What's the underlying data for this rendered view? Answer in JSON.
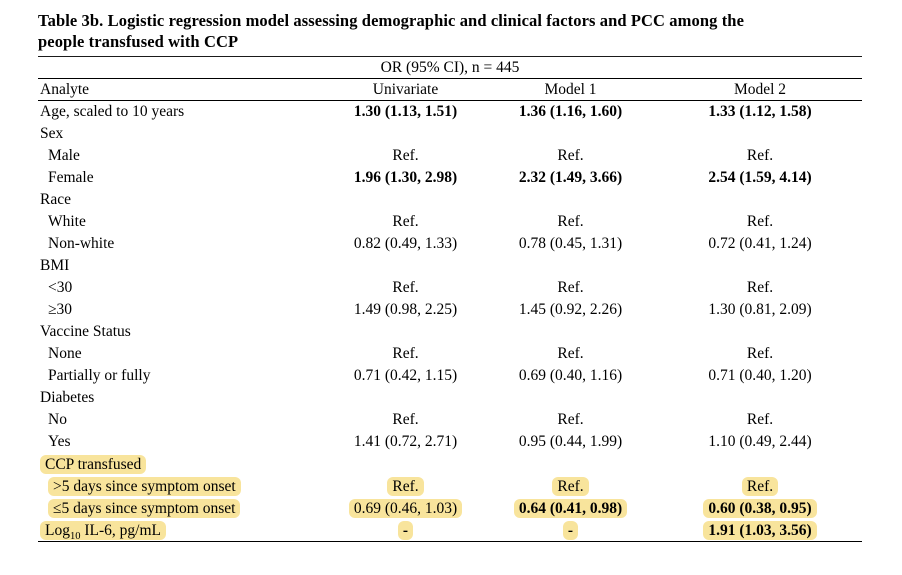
{
  "document": {
    "title_lines": [
      "Table 3b. Logistic regression model assessing demographic and clinical factors and PCC among the",
      "people transfused with CCP"
    ]
  },
  "table": {
    "span_header": "OR (95% CI), n = 445",
    "columns": [
      "Analyte",
      "Univariate",
      "Model 1",
      "Model 2"
    ],
    "highlight_color": "#F8E49C",
    "rows": [
      {
        "label": "Age, scaled to 10 years",
        "indent": false,
        "highlight": false,
        "cells": [
          "1.30 (1.13, 1.51)",
          "1.36 (1.16, 1.60)",
          "1.33 (1.12, 1.58)"
        ],
        "bold_cells": [
          true,
          true,
          true
        ]
      },
      {
        "label": "Sex",
        "indent": false,
        "highlight": false,
        "cells": [
          "",
          "",
          ""
        ],
        "bold_cells": [
          false,
          false,
          false
        ]
      },
      {
        "label": "Male",
        "indent": true,
        "highlight": false,
        "cells": [
          "Ref.",
          "Ref.",
          "Ref."
        ],
        "bold_cells": [
          false,
          false,
          false
        ]
      },
      {
        "label": "Female",
        "indent": true,
        "highlight": false,
        "cells": [
          "1.96 (1.30, 2.98)",
          "2.32 (1.49, 3.66)",
          "2.54 (1.59, 4.14)"
        ],
        "bold_cells": [
          true,
          true,
          true
        ]
      },
      {
        "label": "Race",
        "indent": false,
        "highlight": false,
        "cells": [
          "",
          "",
          ""
        ],
        "bold_cells": [
          false,
          false,
          false
        ]
      },
      {
        "label": "White",
        "indent": true,
        "highlight": false,
        "cells": [
          "Ref.",
          "Ref.",
          "Ref."
        ],
        "bold_cells": [
          false,
          false,
          false
        ]
      },
      {
        "label": "Non-white",
        "indent": true,
        "highlight": false,
        "cells": [
          "0.82 (0.49, 1.33)",
          "0.78 (0.45, 1.31)",
          "0.72 (0.41, 1.24)"
        ],
        "bold_cells": [
          false,
          false,
          false
        ]
      },
      {
        "label": "BMI",
        "indent": false,
        "highlight": false,
        "cells": [
          "",
          "",
          ""
        ],
        "bold_cells": [
          false,
          false,
          false
        ]
      },
      {
        "label": "<30",
        "indent": true,
        "highlight": false,
        "cells": [
          "Ref.",
          "Ref.",
          "Ref."
        ],
        "bold_cells": [
          false,
          false,
          false
        ]
      },
      {
        "label": "≥30",
        "indent": true,
        "highlight": false,
        "cells": [
          "1.49 (0.98, 2.25)",
          "1.45 (0.92, 2.26)",
          "1.30 (0.81, 2.09)"
        ],
        "bold_cells": [
          false,
          false,
          false
        ]
      },
      {
        "label": "Vaccine Status",
        "indent": false,
        "highlight": false,
        "cells": [
          "",
          "",
          ""
        ],
        "bold_cells": [
          false,
          false,
          false
        ]
      },
      {
        "label": "None",
        "indent": true,
        "highlight": false,
        "cells": [
          "Ref.",
          "Ref.",
          "Ref."
        ],
        "bold_cells": [
          false,
          false,
          false
        ]
      },
      {
        "label": "Partially or fully",
        "indent": true,
        "highlight": false,
        "cells": [
          "0.71 (0.42, 1.15)",
          "0.69 (0.40, 1.16)",
          "0.71 (0.40, 1.20)"
        ],
        "bold_cells": [
          false,
          false,
          false
        ]
      },
      {
        "label": "Diabetes",
        "indent": false,
        "highlight": false,
        "cells": [
          "",
          "",
          ""
        ],
        "bold_cells": [
          false,
          false,
          false
        ]
      },
      {
        "label": "No",
        "indent": true,
        "highlight": false,
        "cells": [
          "Ref.",
          "Ref.",
          "Ref."
        ],
        "bold_cells": [
          false,
          false,
          false
        ]
      },
      {
        "label": "Yes",
        "indent": true,
        "highlight": false,
        "cells": [
          "1.41 (0.72, 2.71)",
          "0.95 (0.44, 1.99)",
          "1.10 (0.49, 2.44)"
        ],
        "bold_cells": [
          false,
          false,
          false
        ]
      },
      {
        "label": "CCP transfused",
        "indent": false,
        "highlight": true,
        "cells": [
          "",
          "",
          ""
        ],
        "bold_cells": [
          false,
          false,
          false
        ]
      },
      {
        "label": ">5 days since symptom onset",
        "indent": true,
        "highlight": true,
        "cells": [
          "Ref.",
          "Ref.",
          "Ref."
        ],
        "bold_cells": [
          false,
          false,
          false
        ]
      },
      {
        "label": "≤5 days since symptom onset",
        "indent": true,
        "highlight": true,
        "cells": [
          "0.69 (0.46, 1.03)",
          "0.64 (0.41, 0.98)",
          "0.60 (0.38, 0.95)"
        ],
        "bold_cells": [
          false,
          true,
          true
        ]
      },
      {
        "label_parts": [
          {
            "text": "Log",
            "sub": false
          },
          {
            "text": "10",
            "sub": true
          },
          {
            "text": " IL-6, pg/mL",
            "sub": false
          }
        ],
        "indent": false,
        "highlight": true,
        "cells": [
          "-",
          "-",
          "1.91 (1.03, 3.56)"
        ],
        "bold_cells": [
          true,
          true,
          true
        ]
      }
    ]
  }
}
